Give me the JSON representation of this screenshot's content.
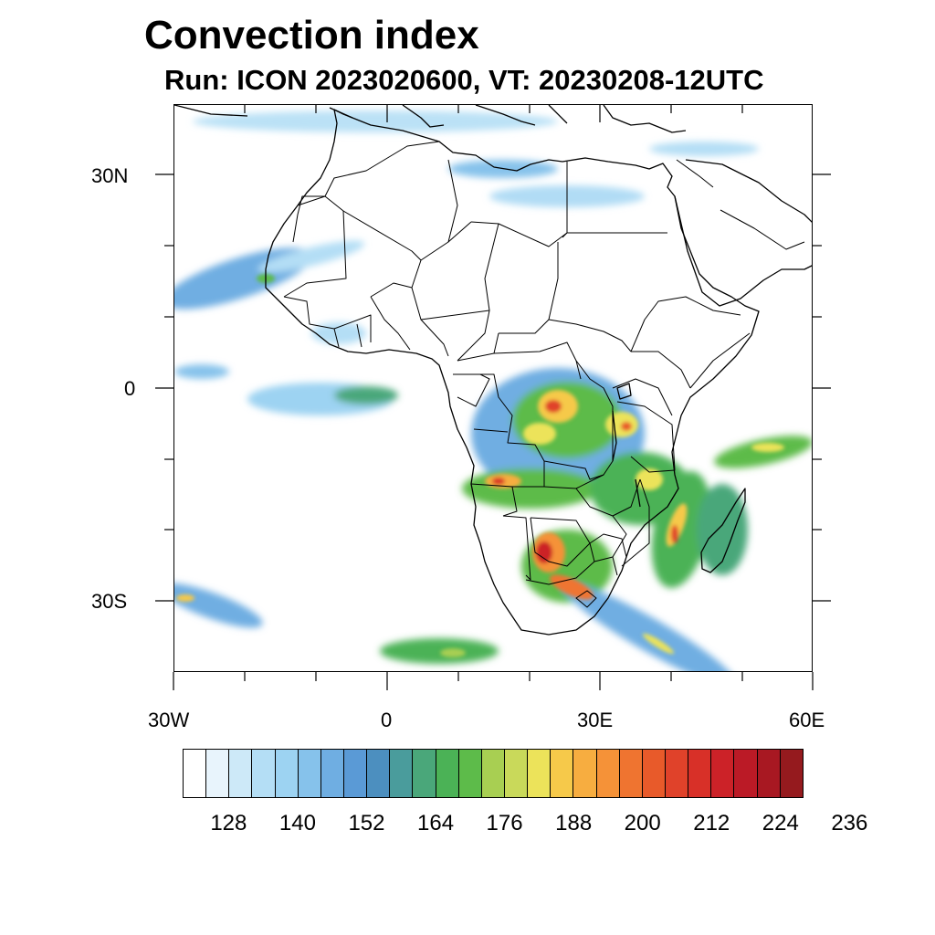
{
  "title": "Convection index",
  "subtitle": "Run: ICON 2023020600,  VT: 20230208-12UTC",
  "map": {
    "region": "Africa",
    "lat_labels": [
      "30N",
      "0",
      "30S"
    ],
    "lon_labels": [
      "30W",
      "0",
      "30E",
      "60E"
    ],
    "lon_range": [
      -30,
      60
    ],
    "lat_range": [
      -40,
      40
    ]
  },
  "colorbar": {
    "colors": [
      "#ffffff",
      "#e8f4fc",
      "#cde9f8",
      "#b4def5",
      "#9dd3f2",
      "#86c2eb",
      "#6faee2",
      "#5a9ad6",
      "#4c8fbf",
      "#4a9c9c",
      "#4aa77a",
      "#4bb256",
      "#5dbb4a",
      "#a8cf52",
      "#c9d95a",
      "#ece35a",
      "#f6c94a",
      "#f7ad40",
      "#f59238",
      "#ef7430",
      "#e85a2a",
      "#e0422a",
      "#d83028",
      "#cc2228",
      "#bb1a26",
      "#a81822",
      "#951a1e"
    ],
    "tick_values": [
      128,
      140,
      152,
      164,
      176,
      188,
      200,
      212,
      224,
      236
    ],
    "tick_labels": [
      "128",
      "140",
      "152",
      "164",
      "176",
      "188",
      "200",
      "212",
      "224",
      "236"
    ]
  }
}
